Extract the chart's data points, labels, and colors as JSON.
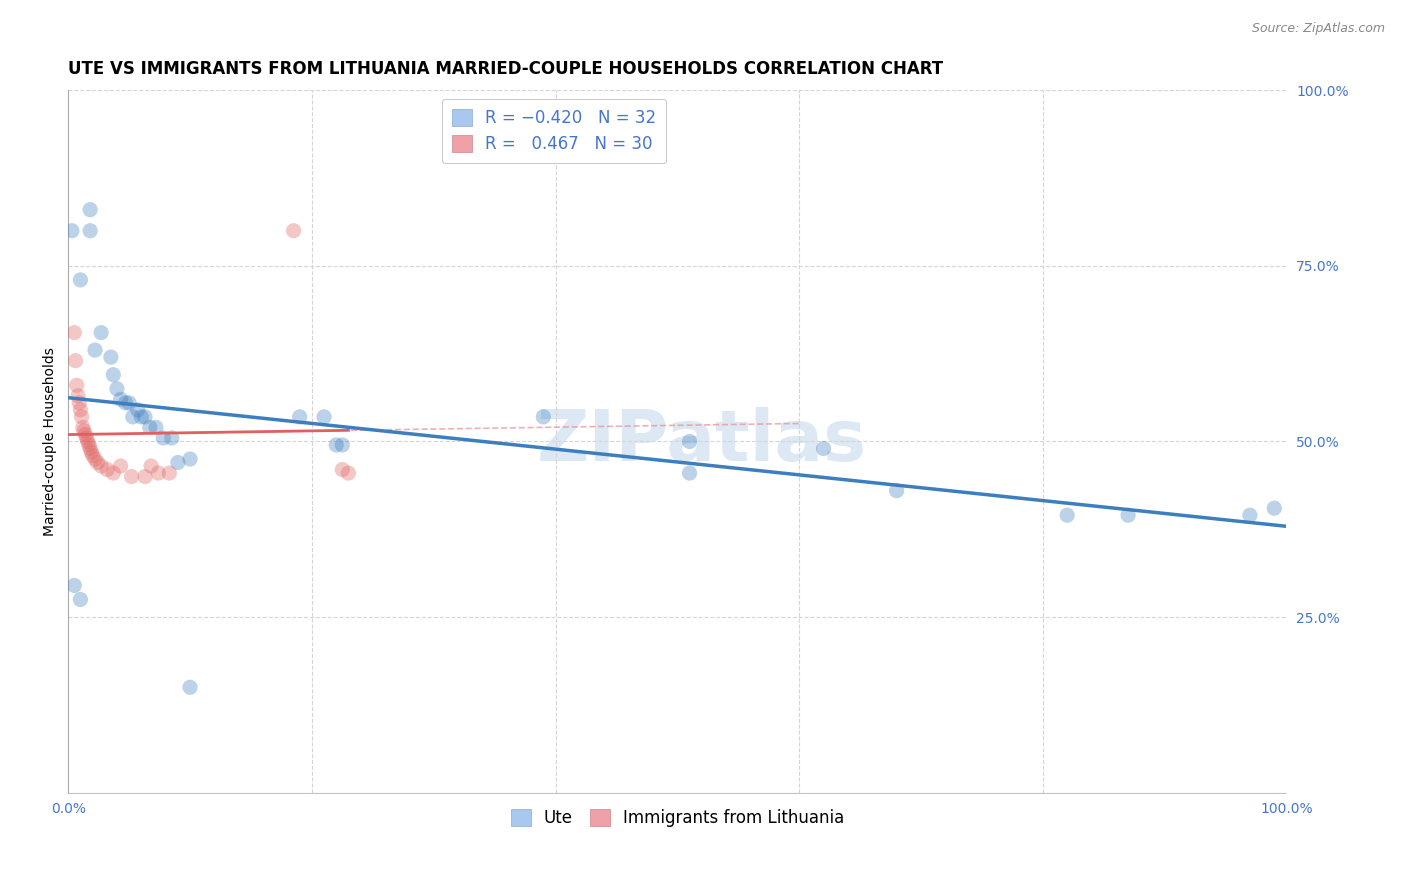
{
  "title": "UTE VS IMMIGRANTS FROM LITHUANIA MARRIED-COUPLE HOUSEHOLDS CORRELATION CHART",
  "source": "Source: ZipAtlas.com",
  "ylabel": "Married-couple Households",
  "watermark": "ZIPatlas",
  "xlim": [
    0,
    1.0
  ],
  "ylim": [
    0,
    1.0
  ],
  "ytick_labels_right": [
    "100.0%",
    "75.0%",
    "50.0%",
    "25.0%"
  ],
  "ytick_vals_right": [
    1.0,
    0.75,
    0.5,
    0.25
  ],
  "blue_scatter": [
    [
      0.003,
      0.8
    ],
    [
      0.01,
      0.73
    ],
    [
      0.018,
      0.83
    ],
    [
      0.018,
      0.8
    ],
    [
      0.022,
      0.63
    ],
    [
      0.027,
      0.655
    ],
    [
      0.035,
      0.62
    ],
    [
      0.037,
      0.595
    ],
    [
      0.04,
      0.575
    ],
    [
      0.043,
      0.56
    ],
    [
      0.047,
      0.555
    ],
    [
      0.05,
      0.555
    ],
    [
      0.053,
      0.535
    ],
    [
      0.057,
      0.545
    ],
    [
      0.06,
      0.535
    ],
    [
      0.063,
      0.535
    ],
    [
      0.067,
      0.52
    ],
    [
      0.072,
      0.52
    ],
    [
      0.078,
      0.505
    ],
    [
      0.085,
      0.505
    ],
    [
      0.09,
      0.47
    ],
    [
      0.1,
      0.475
    ],
    [
      0.19,
      0.535
    ],
    [
      0.21,
      0.535
    ],
    [
      0.22,
      0.495
    ],
    [
      0.225,
      0.495
    ],
    [
      0.39,
      0.535
    ],
    [
      0.51,
      0.5
    ],
    [
      0.51,
      0.455
    ],
    [
      0.62,
      0.49
    ],
    [
      0.68,
      0.43
    ],
    [
      0.82,
      0.395
    ],
    [
      0.87,
      0.395
    ],
    [
      0.97,
      0.395
    ],
    [
      0.99,
      0.405
    ],
    [
      0.005,
      0.295
    ],
    [
      0.01,
      0.275
    ],
    [
      0.1,
      0.15
    ]
  ],
  "pink_scatter": [
    [
      0.005,
      0.655
    ],
    [
      0.006,
      0.615
    ],
    [
      0.007,
      0.58
    ],
    [
      0.008,
      0.565
    ],
    [
      0.009,
      0.555
    ],
    [
      0.01,
      0.545
    ],
    [
      0.011,
      0.535
    ],
    [
      0.012,
      0.52
    ],
    [
      0.013,
      0.515
    ],
    [
      0.014,
      0.51
    ],
    [
      0.015,
      0.505
    ],
    [
      0.016,
      0.5
    ],
    [
      0.017,
      0.495
    ],
    [
      0.018,
      0.49
    ],
    [
      0.019,
      0.485
    ],
    [
      0.02,
      0.48
    ],
    [
      0.022,
      0.475
    ],
    [
      0.024,
      0.47
    ],
    [
      0.027,
      0.465
    ],
    [
      0.032,
      0.46
    ],
    [
      0.037,
      0.455
    ],
    [
      0.043,
      0.465
    ],
    [
      0.052,
      0.45
    ],
    [
      0.063,
      0.45
    ],
    [
      0.068,
      0.465
    ],
    [
      0.074,
      0.455
    ],
    [
      0.083,
      0.455
    ],
    [
      0.185,
      0.8
    ],
    [
      0.225,
      0.46
    ],
    [
      0.23,
      0.455
    ]
  ],
  "blue_line_color": "#3d7ebf",
  "pink_line_color": "#e06060",
  "dashed_line_color": "#e89090",
  "grid_color": "#d5d5d5",
  "background_color": "#ffffff",
  "title_fontsize": 12,
  "axis_label_fontsize": 10,
  "tick_fontsize": 10,
  "source_fontsize": 9,
  "watermark_fontsize": 52,
  "watermark_color": "#dde8f5",
  "scatter_size": 120,
  "scatter_alpha": 0.35,
  "legend_fontsize": 12
}
